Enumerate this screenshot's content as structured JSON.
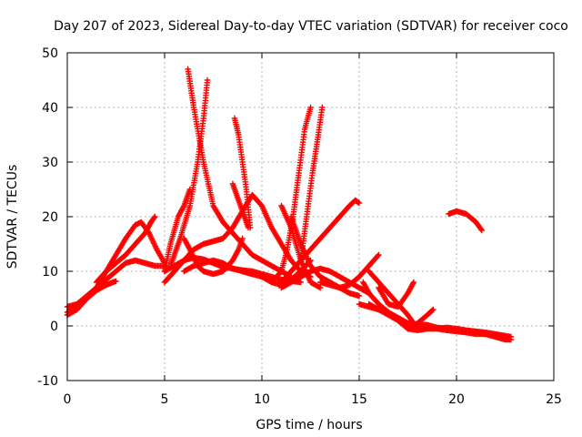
{
  "chart_data": {
    "type": "scatter",
    "title": "Day 207 of 2023, Sidereal Day-to-day VTEC variation (SDTVAR) for receiver coco",
    "xlabel": "GPS time / hours",
    "ylabel": "SDTVAR / TECUs",
    "xlim": [
      0,
      25
    ],
    "ylim": [
      -10,
      50
    ],
    "xticks": [
      "0",
      "5",
      "10",
      "15",
      "20",
      "25"
    ],
    "yticks": [
      "-10",
      "0",
      "10",
      "20",
      "30",
      "40",
      "50"
    ],
    "grid": true,
    "marker": "+",
    "color": "#ff0000",
    "series": [
      {
        "name": "t1",
        "points": [
          [
            0,
            2
          ],
          [
            0.5,
            3
          ],
          [
            1,
            5
          ],
          [
            1.5,
            7
          ],
          [
            2,
            10
          ],
          [
            2.5,
            13
          ],
          [
            3,
            16
          ],
          [
            3.5,
            18.5
          ],
          [
            3.8,
            19
          ],
          [
            4.2,
            17
          ],
          [
            4.6,
            14
          ],
          [
            5,
            11.5
          ]
        ]
      },
      {
        "name": "t2",
        "points": [
          [
            0,
            3.5
          ],
          [
            0.5,
            4
          ],
          [
            1,
            5.5
          ],
          [
            1.5,
            7
          ],
          [
            2,
            8.5
          ],
          [
            2.5,
            10
          ],
          [
            3,
            11.5
          ],
          [
            3.5,
            12
          ],
          [
            4,
            11.5
          ],
          [
            4.5,
            11
          ],
          [
            5,
            11
          ]
        ]
      },
      {
        "name": "t3",
        "points": [
          [
            0,
            2.5
          ],
          [
            0.5,
            3.5
          ],
          [
            1,
            5
          ],
          [
            1.5,
            6.5
          ],
          [
            2,
            7.5
          ],
          [
            2.5,
            8.2
          ]
        ]
      },
      {
        "name": "t4",
        "points": [
          [
            1.5,
            8
          ],
          [
            2,
            10
          ],
          [
            2.5,
            11.5
          ],
          [
            3,
            13
          ],
          [
            3.5,
            15
          ],
          [
            4,
            17
          ],
          [
            4.3,
            19
          ],
          [
            4.5,
            20
          ]
        ]
      },
      {
        "name": "t5",
        "points": [
          [
            5,
            10
          ],
          [
            5.3,
            15
          ],
          [
            5.7,
            20
          ],
          [
            6,
            22
          ],
          [
            6.3,
            25
          ]
        ]
      },
      {
        "name": "t6",
        "points": [
          [
            5,
            8
          ],
          [
            5.5,
            10
          ],
          [
            6,
            12
          ],
          [
            6.5,
            14
          ],
          [
            7,
            15
          ],
          [
            7.5,
            15.5
          ],
          [
            8,
            16
          ],
          [
            8.5,
            18
          ],
          [
            9,
            21
          ],
          [
            9.5,
            24
          ],
          [
            10,
            22
          ],
          [
            10.5,
            18
          ],
          [
            11,
            15
          ],
          [
            11.5,
            12
          ],
          [
            12,
            10
          ],
          [
            12.5,
            9
          ]
        ]
      },
      {
        "name": "t7",
        "points": [
          [
            6.2,
            47
          ],
          [
            6.5,
            40
          ],
          [
            7,
            30
          ],
          [
            7.5,
            22
          ],
          [
            8,
            19
          ],
          [
            8.5,
            17
          ],
          [
            9,
            15
          ],
          [
            9.5,
            13
          ],
          [
            10,
            12
          ],
          [
            10.5,
            11
          ],
          [
            11,
            10
          ],
          [
            11.5,
            9
          ]
        ]
      },
      {
        "name": "t8",
        "points": [
          [
            5.3,
            11
          ],
          [
            5.8,
            16
          ],
          [
            6.3,
            22
          ],
          [
            6.7,
            30
          ],
          [
            7,
            38
          ],
          [
            7.2,
            45
          ]
        ]
      },
      {
        "name": "t9",
        "points": [
          [
            5,
            10
          ],
          [
            5.5,
            11
          ],
          [
            6,
            12
          ],
          [
            6.5,
            12.5
          ],
          [
            7,
            12.2
          ],
          [
            7.5,
            11.5
          ],
          [
            8,
            10.8
          ],
          [
            8.5,
            10.5
          ],
          [
            9,
            10.2
          ],
          [
            9.5,
            10
          ],
          [
            10,
            9.5
          ],
          [
            10.5,
            9
          ],
          [
            11,
            8.5
          ],
          [
            11.5,
            8.2
          ],
          [
            12,
            8
          ]
        ]
      },
      {
        "name": "t10",
        "points": [
          [
            6,
            16
          ],
          [
            6.3,
            14
          ],
          [
            6.7,
            11
          ],
          [
            7,
            10
          ],
          [
            7.5,
            9.5
          ],
          [
            8,
            10
          ],
          [
            8.5,
            12
          ],
          [
            8.8,
            14
          ],
          [
            9,
            16
          ]
        ]
      },
      {
        "name": "t11",
        "points": [
          [
            6,
            10
          ],
          [
            6.5,
            11
          ],
          [
            7,
            11.5
          ],
          [
            7.5,
            12
          ],
          [
            8,
            11.5
          ],
          [
            8.5,
            10.5
          ],
          [
            9,
            10
          ],
          [
            9.5,
            9.5
          ]
        ]
      },
      {
        "name": "t12",
        "points": [
          [
            8.5,
            26
          ],
          [
            8.8,
            23
          ],
          [
            9,
            21
          ],
          [
            9.3,
            18
          ]
        ]
      },
      {
        "name": "t13",
        "points": [
          [
            8.6,
            38
          ],
          [
            8.8,
            35
          ],
          [
            9,
            30
          ],
          [
            9.2,
            25
          ],
          [
            9.4,
            18
          ]
        ]
      },
      {
        "name": "t14",
        "points": [
          [
            9,
            10
          ],
          [
            9.5,
            9.5
          ],
          [
            10,
            9
          ],
          [
            10.5,
            8
          ],
          [
            11,
            7.5
          ],
          [
            11.5,
            8.5
          ],
          [
            12,
            10
          ],
          [
            12.5,
            12
          ]
        ]
      },
      {
        "name": "t15",
        "points": [
          [
            10.5,
            8
          ],
          [
            11,
            10
          ],
          [
            11.3,
            14
          ],
          [
            11.6,
            20
          ],
          [
            11.9,
            28
          ],
          [
            12.2,
            36
          ],
          [
            12.5,
            40
          ]
        ]
      },
      {
        "name": "t16",
        "points": [
          [
            12,
            12
          ],
          [
            12.3,
            20
          ],
          [
            12.6,
            28
          ],
          [
            12.9,
            35
          ],
          [
            13.1,
            40
          ]
        ]
      },
      {
        "name": "t17",
        "points": [
          [
            11,
            22
          ],
          [
            11.5,
            18
          ],
          [
            12,
            12
          ],
          [
            12.5,
            8
          ],
          [
            13,
            7
          ]
        ]
      },
      {
        "name": "t18",
        "points": [
          [
            11.5,
            20
          ],
          [
            12,
            15
          ],
          [
            12.5,
            11
          ],
          [
            13,
            9
          ],
          [
            13.5,
            8
          ],
          [
            14,
            7
          ],
          [
            14.5,
            6
          ],
          [
            15,
            5.5
          ]
        ]
      },
      {
        "name": "t19",
        "points": [
          [
            11,
            8
          ],
          [
            11.5,
            10
          ],
          [
            12,
            12
          ],
          [
            12.5,
            14
          ],
          [
            13,
            16
          ],
          [
            13.5,
            18
          ],
          [
            14,
            20
          ],
          [
            14.5,
            22
          ],
          [
            14.8,
            23
          ],
          [
            15,
            22.5
          ]
        ]
      },
      {
        "name": "t20",
        "points": [
          [
            11,
            7
          ],
          [
            11.5,
            8
          ],
          [
            12,
            9
          ],
          [
            12.5,
            10
          ],
          [
            13,
            10.5
          ],
          [
            13.5,
            10
          ],
          [
            14,
            9
          ],
          [
            14.5,
            8
          ],
          [
            15,
            7
          ],
          [
            15.5,
            6
          ]
        ]
      },
      {
        "name": "t21",
        "points": [
          [
            13,
            8
          ],
          [
            13.5,
            7.5
          ],
          [
            14,
            7
          ],
          [
            14.5,
            7.5
          ],
          [
            15,
            9
          ],
          [
            15.5,
            11
          ],
          [
            16,
            13
          ]
        ]
      },
      {
        "name": "t22",
        "points": [
          [
            15,
            4
          ],
          [
            15.5,
            3.5
          ],
          [
            16,
            3
          ],
          [
            16.5,
            2.5
          ],
          [
            17,
            1.5
          ],
          [
            17.5,
            0.5
          ],
          [
            18,
            0.3
          ],
          [
            18.5,
            0.2
          ],
          [
            19,
            -0.3
          ],
          [
            19.5,
            -0.5
          ],
          [
            20,
            -0.8
          ],
          [
            20.5,
            -1
          ],
          [
            21,
            -1.2
          ],
          [
            21.5,
            -1.5
          ],
          [
            22,
            -2
          ],
          [
            22.5,
            -2.5
          ],
          [
            22.8,
            -2.5
          ]
        ]
      },
      {
        "name": "t23",
        "points": [
          [
            15.2,
            8
          ],
          [
            15.5,
            6
          ],
          [
            16,
            4
          ],
          [
            16.5,
            2.5
          ],
          [
            17,
            1
          ],
          [
            17.5,
            0
          ],
          [
            18,
            -0.5
          ],
          [
            18.5,
            -0.5
          ],
          [
            19,
            -0.5
          ],
          [
            19.5,
            -0.3
          ],
          [
            20,
            -0.5
          ],
          [
            20.5,
            -0.8
          ],
          [
            21,
            -1
          ],
          [
            21.5,
            -1.2
          ],
          [
            22,
            -1.5
          ],
          [
            22.5,
            -1.8
          ],
          [
            22.8,
            -2
          ]
        ]
      },
      {
        "name": "t24",
        "points": [
          [
            15.5,
            4
          ],
          [
            16,
            3
          ],
          [
            16.5,
            2
          ],
          [
            17,
            1
          ],
          [
            17.5,
            -0.5
          ],
          [
            18,
            -0.8
          ],
          [
            18.5,
            -0.5
          ],
          [
            19,
            -0.5
          ],
          [
            19.5,
            -0.8
          ],
          [
            20,
            -1
          ],
          [
            20.5,
            -1.2
          ],
          [
            21,
            -1.5
          ],
          [
            21.5,
            -1.5
          ],
          [
            22,
            -1.8
          ],
          [
            22.5,
            -2
          ]
        ]
      },
      {
        "name": "t25",
        "points": [
          [
            15.5,
            10
          ],
          [
            16,
            8
          ],
          [
            16.5,
            6
          ],
          [
            17,
            4
          ],
          [
            17.5,
            2
          ],
          [
            17.8,
            0.5
          ]
        ]
      },
      {
        "name": "t26",
        "points": [
          [
            16,
            7
          ],
          [
            16.5,
            4
          ],
          [
            17,
            3.5
          ],
          [
            17.5,
            6
          ],
          [
            17.8,
            8
          ]
        ]
      },
      {
        "name": "t27",
        "points": [
          [
            17,
            1
          ],
          [
            17.5,
            -0.5
          ],
          [
            18,
            0.5
          ],
          [
            18.5,
            2
          ],
          [
            18.8,
            3
          ]
        ]
      },
      {
        "name": "t28",
        "points": [
          [
            19.6,
            20.5
          ],
          [
            20,
            21
          ],
          [
            20.5,
            20.5
          ],
          [
            21,
            19
          ],
          [
            21.3,
            17.5
          ]
        ]
      }
    ]
  }
}
